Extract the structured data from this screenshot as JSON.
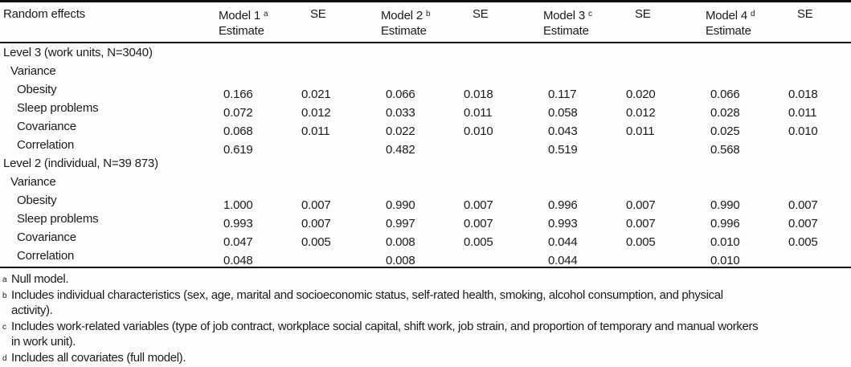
{
  "table": {
    "row_header": "Random effects",
    "models": [
      {
        "name": "Model 1",
        "footnote_mark": "a",
        "sub_label": "Estimate",
        "se_label": "SE"
      },
      {
        "name": "Model 2",
        "footnote_mark": "b",
        "sub_label": "Estimate",
        "se_label": "SE"
      },
      {
        "name": "Model 3",
        "footnote_mark": "c",
        "sub_label": "Estimate",
        "se_label": "SE"
      },
      {
        "name": "Model 4",
        "footnote_mark": "d",
        "sub_label": "Estimate",
        "se_label": "SE"
      }
    ],
    "sections": [
      {
        "title": "Level 3 (work units, N=3040)",
        "group_label": "Variance",
        "rows": [
          {
            "label": "Obesity",
            "values": [
              "0.166",
              "0.021",
              "0.066",
              "0.018",
              "0.117",
              "0.020",
              "0.066",
              "0.018"
            ]
          },
          {
            "label": "Sleep problems",
            "values": [
              "0.072",
              "0.012",
              "0.033",
              "0.011",
              "0.058",
              "0.012",
              "0.028",
              "0.011"
            ]
          },
          {
            "label": "Covariance",
            "values": [
              "0.068",
              "0.011",
              "0.022",
              "0.010",
              "0.043",
              "0.011",
              "0.025",
              "0.010"
            ]
          },
          {
            "label": "Correlation",
            "values": [
              "0.619",
              "",
              "0.482",
              "",
              "0.519",
              "",
              "0.568",
              ""
            ]
          }
        ]
      },
      {
        "title": "Level 2 (individual, N=39 873)",
        "group_label": "Variance",
        "rows": [
          {
            "label": "Obesity",
            "values": [
              "1.000",
              "0.007",
              "0.990",
              "0.007",
              "0.996",
              "0.007",
              "0.990",
              "0.007"
            ]
          },
          {
            "label": "Sleep problems",
            "values": [
              "0.993",
              "0.007",
              "0.997",
              "0.007",
              "0.993",
              "0.007",
              "0.996",
              "0.007"
            ]
          },
          {
            "label": "Covariance",
            "values": [
              "0.047",
              "0.005",
              "0.008",
              "0.005",
              "0.044",
              "0.005",
              "0.010",
              "0.005"
            ]
          },
          {
            "label": "Correlation",
            "values": [
              "0.048",
              "",
              "0.008",
              "",
              "0.044",
              "",
              "0.010",
              ""
            ]
          }
        ]
      }
    ],
    "footnotes": [
      {
        "mark": "a",
        "text": "Null model."
      },
      {
        "mark": "b",
        "text": "Includes individual characteristics (sex, age, marital and socioeconomic status, self-rated health, smoking, alcohol consumption, and physical\nactivity)."
      },
      {
        "mark": "c",
        "text": "Includes work-related variables (type of job contract, workplace social capital, shift work, job strain, and proportion of temporary and manual workers\nin  work unit)."
      },
      {
        "mark": "d",
        "text": "Includes all covariates (full model)."
      }
    ]
  }
}
